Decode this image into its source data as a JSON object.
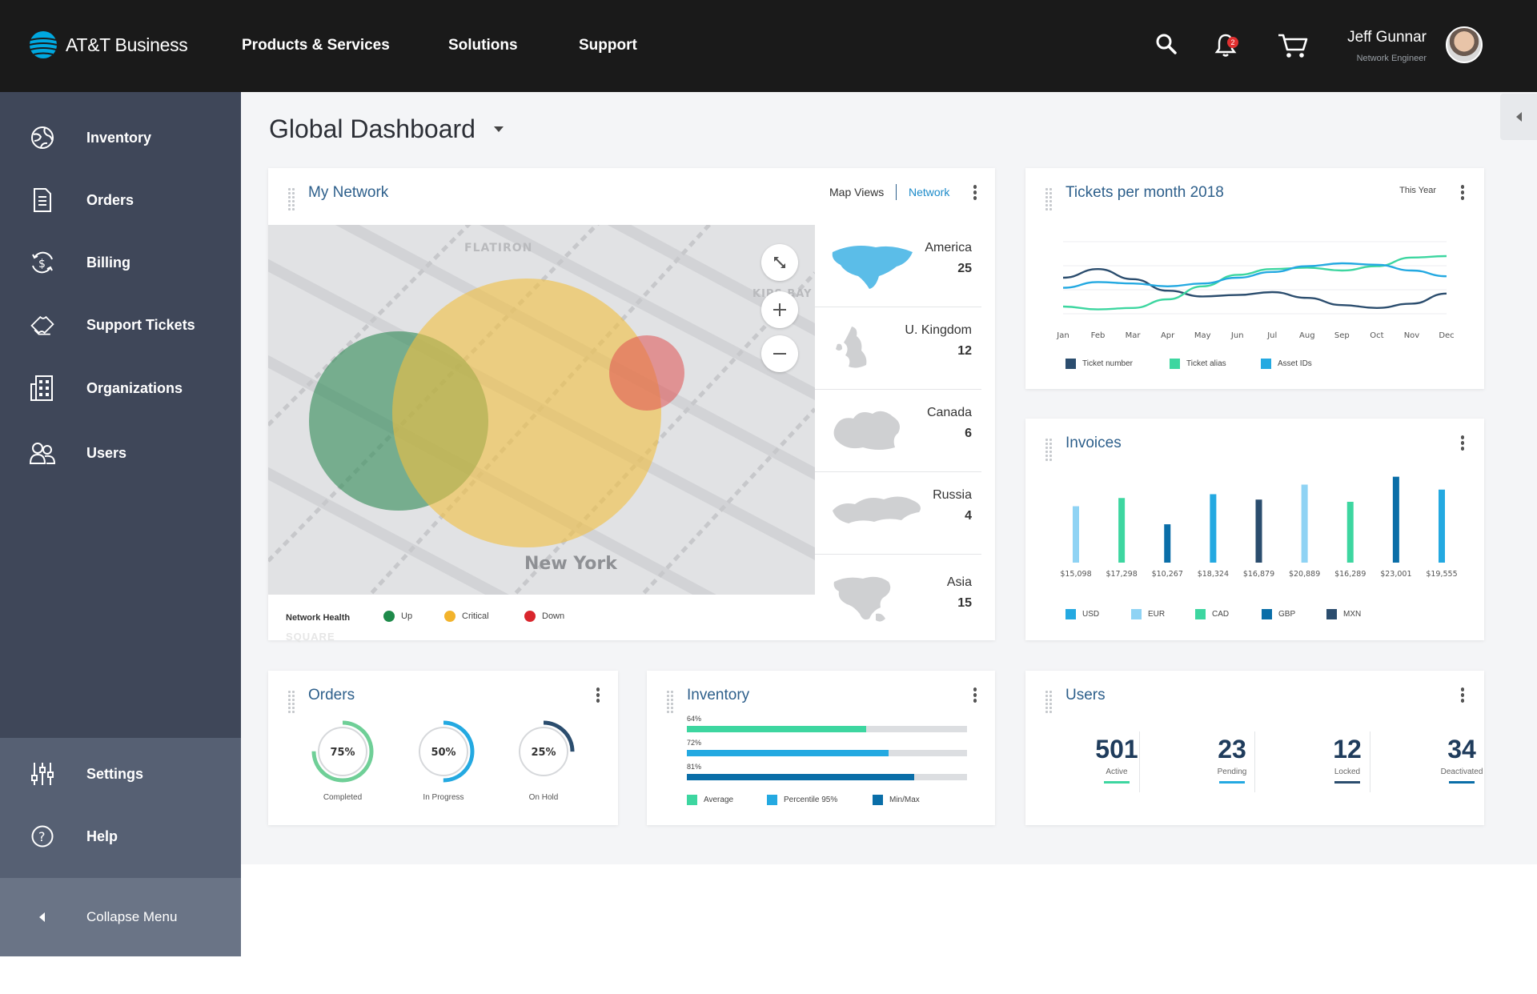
{
  "header": {
    "brand": "AT&T Business",
    "nav": [
      "Products & Services",
      "Solutions",
      "Support"
    ],
    "notifications_count": "2",
    "user_name": "Jeff Gunnar",
    "user_role": "Network Engineer"
  },
  "sidebar": {
    "items": [
      {
        "label": "Inventory",
        "icon": "globe-icon"
      },
      {
        "label": "Orders",
        "icon": "document-icon"
      },
      {
        "label": "Billing",
        "icon": "dollar-refresh-icon"
      },
      {
        "label": "Support Tickets",
        "icon": "ticket-icon"
      },
      {
        "label": "Organizations",
        "icon": "building-icon"
      },
      {
        "label": "Users",
        "icon": "users-icon"
      }
    ],
    "settings": "Settings",
    "help": "Help",
    "collapse": "Collapse Menu"
  },
  "page": {
    "title": "Global Dashboard"
  },
  "network": {
    "title": "My Network",
    "view_label": "Map Views",
    "view_active": "Network",
    "map_labels": [
      "FLATIRON",
      "KIPS BAY",
      "New York",
      "SQUARE"
    ],
    "legend_title": "Network Health",
    "legend": [
      {
        "label": "Up",
        "color": "#1e8a4a"
      },
      {
        "label": "Critical",
        "color": "#f2b32c"
      },
      {
        "label": "Down",
        "color": "#d9262d"
      }
    ],
    "regions": [
      {
        "name": "America",
        "count": "25"
      },
      {
        "name": "U. Kingdom",
        "count": "12"
      },
      {
        "name": "Canada",
        "count": "6"
      },
      {
        "name": "Russia",
        "count": "4"
      },
      {
        "name": "Asia",
        "count": "15"
      }
    ]
  },
  "tickets": {
    "title": "Tickets per month 2018",
    "period": "This Year",
    "legend": [
      {
        "label": "Ticket number",
        "color": "#2b4d6e"
      },
      {
        "label": "Ticket alias",
        "color": "#3dd6a0"
      },
      {
        "label": "Asset IDs",
        "color": "#24a9e1"
      }
    ]
  },
  "invoices": {
    "title": "Invoices",
    "legend": [
      {
        "label": "USD",
        "color": "#24a9e1"
      },
      {
        "label": "EUR",
        "color": "#8fd3f4"
      },
      {
        "label": "CAD",
        "color": "#3dd6a0"
      },
      {
        "label": "GBP",
        "color": "#0a6ea8"
      },
      {
        "label": "MXN",
        "color": "#2b4d6e"
      }
    ]
  },
  "orders": {
    "title": "Orders",
    "rings": [
      {
        "value": 75,
        "label": "75%",
        "caption": "Completed",
        "color": "#6fcf97"
      },
      {
        "value": 50,
        "label": "50%",
        "caption": "In Progress",
        "color": "#24a9e1"
      },
      {
        "value": 25,
        "label": "25%",
        "caption": "On Hold",
        "color": "#2b4d6e"
      }
    ]
  },
  "inventory": {
    "title": "Inventory",
    "bars": [
      {
        "label": "64%",
        "value": 0.64,
        "color": "#3dd6a0"
      },
      {
        "label": "72%",
        "value": 0.72,
        "color": "#24a9e1"
      },
      {
        "label": "81%",
        "value": 0.81,
        "color": "#0a6ea8"
      }
    ],
    "legend": [
      {
        "label": "Average",
        "color": "#3dd6a0"
      },
      {
        "label": "Percentile 95%",
        "color": "#24a9e1"
      },
      {
        "label": "Min/Max",
        "color": "#0a6ea8"
      }
    ]
  },
  "users": {
    "title": "Users",
    "stats": [
      {
        "value": "501",
        "label": "Active",
        "color": "#3dd6a0"
      },
      {
        "value": "23",
        "label": "Pending",
        "color": "#24a9e1"
      },
      {
        "value": "12",
        "label": "Locked",
        "color": "#2b4d6e"
      },
      {
        "value": "34",
        "label": "Deactivated",
        "color": "#0a6ea8"
      }
    ]
  },
  "chart_data": [
    {
      "type": "line",
      "title": "Tickets per month 2018",
      "categories": [
        "Jan",
        "Feb",
        "Mar",
        "Apr",
        "May",
        "Jun",
        "Jul",
        "Aug",
        "Sep",
        "Oct",
        "Nov",
        "Dec"
      ],
      "series": [
        {
          "name": "Ticket number",
          "values": [
            50,
            62,
            48,
            32,
            24,
            26,
            30,
            22,
            12,
            8,
            14,
            28
          ],
          "color": "#2b4d6e"
        },
        {
          "name": "Ticket alias",
          "values": [
            10,
            6,
            8,
            20,
            38,
            54,
            62,
            64,
            60,
            66,
            78,
            80
          ],
          "color": "#3dd6a0"
        },
        {
          "name": "Asset IDs",
          "values": [
            36,
            44,
            42,
            38,
            42,
            50,
            58,
            66,
            70,
            68,
            60,
            52
          ],
          "color": "#24a9e1"
        }
      ],
      "ylim": [
        0,
        100
      ]
    },
    {
      "type": "bar",
      "title": "Invoices",
      "categories": [
        "$15,098",
        "$17,298",
        "$10,267",
        "$18,324",
        "$16,879",
        "$20,889",
        "$16,289",
        "$23,001",
        "$19,555"
      ],
      "values": [
        15098,
        17298,
        10267,
        18324,
        16879,
        20889,
        16289,
        23001,
        19555
      ],
      "colors": [
        "#8fd3f4",
        "#3dd6a0",
        "#0a6ea8",
        "#24a9e1",
        "#2b4d6e",
        "#8fd3f4",
        "#3dd6a0",
        "#0a6ea8",
        "#24a9e1"
      ],
      "ylim": [
        0,
        24000
      ]
    }
  ]
}
